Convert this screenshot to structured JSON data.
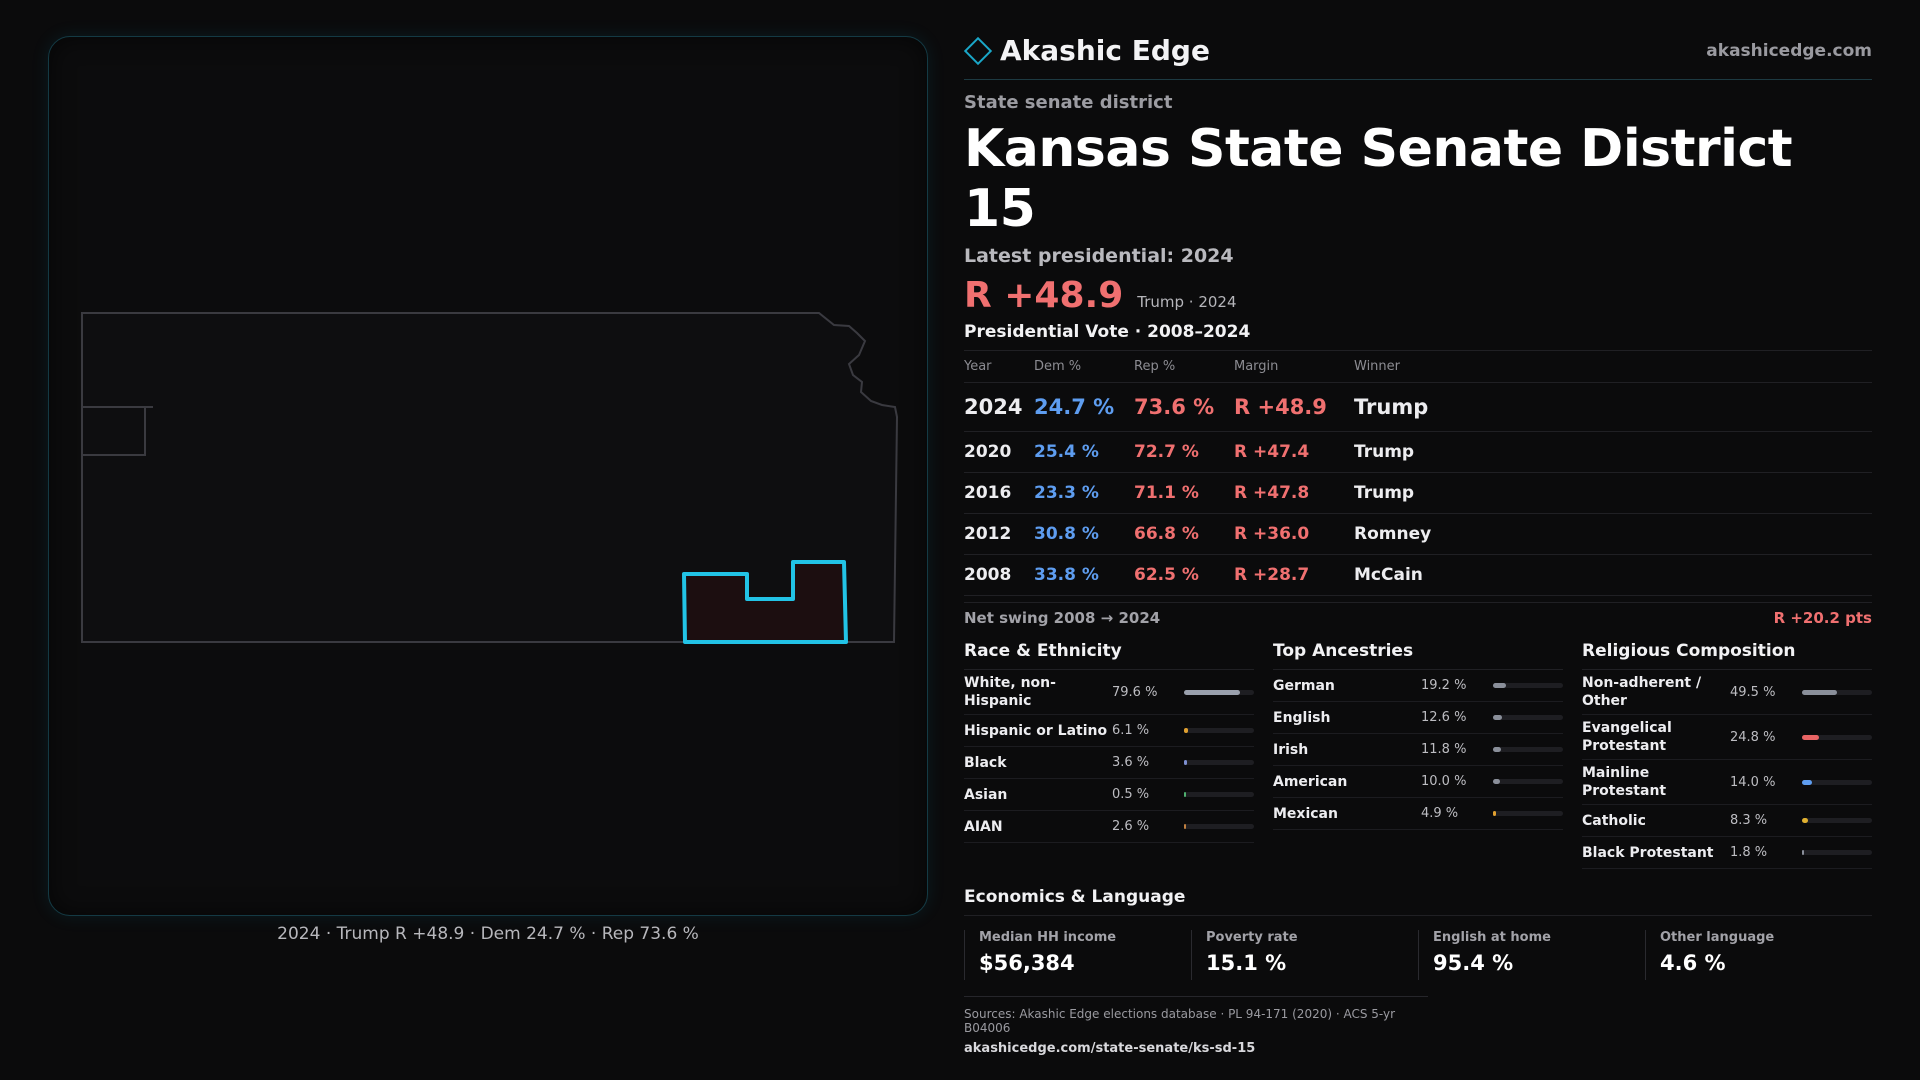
{
  "brand": {
    "name": "Akashic Edge",
    "url": "akashicedge.com",
    "accent": "#1aa7c8"
  },
  "district": {
    "kind": "State senate district",
    "title": "Kansas State Senate District 15",
    "latest": "Latest presidential: 2024",
    "margin": "R +48.9",
    "margin_note": "Trump · 2024"
  },
  "map": {
    "caption": "2024 · Trump R +48.9 · Dem 24.7 % · Rep 73.6 %",
    "highlight_color": "#22c3e6"
  },
  "presidential": {
    "title": "Presidential Vote · 2008–2024",
    "headers": [
      "Year",
      "Dem %",
      "Rep %",
      "Margin",
      "Winner"
    ],
    "rows": [
      {
        "year": "2024",
        "dem": "24.7 %",
        "rep": "73.6 %",
        "margin": "R +48.9",
        "winner": "Trump"
      },
      {
        "year": "2020",
        "dem": "25.4 %",
        "rep": "72.7 %",
        "margin": "R +47.4",
        "winner": "Trump"
      },
      {
        "year": "2016",
        "dem": "23.3 %",
        "rep": "71.1 %",
        "margin": "R +47.8",
        "winner": "Trump"
      },
      {
        "year": "2012",
        "dem": "30.8 %",
        "rep": "66.8 %",
        "margin": "R +36.0",
        "winner": "Romney"
      },
      {
        "year": "2008",
        "dem": "33.8 %",
        "rep": "62.5 %",
        "margin": "R +28.7",
        "winner": "McCain"
      }
    ],
    "swing_label": "Net swing 2008 → 2024",
    "swing_value": "R +20.2 pts"
  },
  "race": {
    "title": "Race & Ethnicity",
    "items": [
      {
        "label": "White, non-Hispanic",
        "value": "79.6 %",
        "pct": 79.6,
        "color": "#9aa0ad"
      },
      {
        "label": "Hispanic or Latino",
        "value": "6.1 %",
        "pct": 6.1,
        "color": "#e0a030"
      },
      {
        "label": "Black",
        "value": "3.6 %",
        "pct": 3.6,
        "color": "#7d8fd0"
      },
      {
        "label": "Asian",
        "value": "0.5 %",
        "pct": 0.5,
        "color": "#50b070"
      },
      {
        "label": "AIAN",
        "value": "2.6 %",
        "pct": 2.6,
        "color": "#c08040"
      }
    ]
  },
  "ancestry": {
    "title": "Top Ancestries",
    "items": [
      {
        "label": "German",
        "value": "19.2 %",
        "pct": 19.2,
        "color": "#8a8f9a"
      },
      {
        "label": "English",
        "value": "12.6 %",
        "pct": 12.6,
        "color": "#8a8f9a"
      },
      {
        "label": "Irish",
        "value": "11.8 %",
        "pct": 11.8,
        "color": "#8a8f9a"
      },
      {
        "label": "American",
        "value": "10.0 %",
        "pct": 10.0,
        "color": "#8a8f9a"
      },
      {
        "label": "Mexican",
        "value": "4.9 %",
        "pct": 4.9,
        "color": "#e0a030"
      }
    ]
  },
  "religion": {
    "title": "Religious Composition",
    "items": [
      {
        "label": "Non-adherent / Other",
        "value": "49.5 %",
        "pct": 49.5,
        "color": "#8a8f9a"
      },
      {
        "label": "Evangelical Protestant",
        "value": "24.8 %",
        "pct": 24.8,
        "color": "#e86464"
      },
      {
        "label": "Mainline Protestant",
        "value": "14.0 %",
        "pct": 14.0,
        "color": "#5e9df0"
      },
      {
        "label": "Catholic",
        "value": "8.3 %",
        "pct": 8.3,
        "color": "#e0b030"
      },
      {
        "label": "Black Protestant",
        "value": "1.8 %",
        "pct": 1.8,
        "color": "#8a8f9a"
      }
    ]
  },
  "economics": {
    "title": "Economics & Language",
    "items": [
      {
        "label": "Median HH income",
        "value": "$56,384"
      },
      {
        "label": "Poverty rate",
        "value": "15.1 %"
      },
      {
        "label": "English at home",
        "value": "95.4 %"
      },
      {
        "label": "Other language",
        "value": "4.6 %"
      }
    ]
  },
  "sources": {
    "line": "Sources: Akashic Edge elections database · PL 94-171 (2020) · ACS 5-yr B04006",
    "url": "akashicedge.com/state-senate/ks-sd-15"
  }
}
